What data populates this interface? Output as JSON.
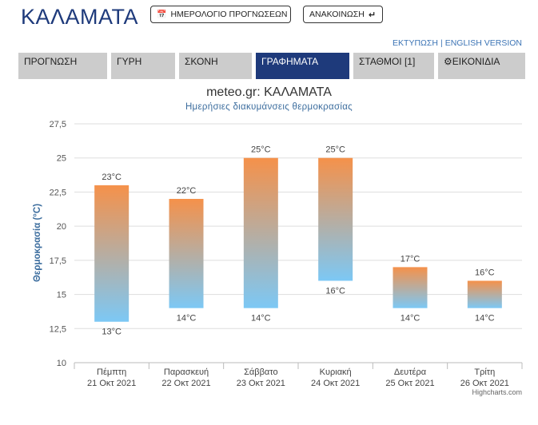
{
  "header": {
    "city": "ΚΑΛΑΜΑΤΑ",
    "calendar_button": "ΗΜΕΡΟΛΟΓΙΟ ΠΡΟΓΝΩΣΕΩΝ",
    "calendar_icon": "calendar-icon",
    "announce_button": "ΑΝΑΚΟΙΝΩΣΗ",
    "announce_icon": "turn-down-arrow-icon"
  },
  "links": {
    "print": "ΕΚΤΥΠΩΣΗ",
    "separator": "|",
    "english": "ENGLISH VERSION"
  },
  "tabs": [
    {
      "label": "ΠΡΟΓΝΩΣΗ",
      "active": false
    },
    {
      "label": "ΓΥΡΗ",
      "active": false
    },
    {
      "label": "ΣΚΟΝΗ",
      "active": false
    },
    {
      "label": "ΓΡΑΦΗΜΑΤΑ",
      "active": true
    },
    {
      "label": "ΣΤΑΘΜΟΙ [1]",
      "active": false
    },
    {
      "label": "ΕΙΚΟΝΙΔΙΑ",
      "active": false,
      "icon": "gear-icon"
    }
  ],
  "colors": {
    "brand": "#1e3a7b",
    "tab_inactive": "#cccccc",
    "bar_top": "#f5914a",
    "bar_bottom": "#7cc8f5",
    "link": "#3c74b5"
  },
  "chart_data": {
    "type": "columnrange",
    "title": "meteo.gr: ΚΑΛΑΜΑΤΑ",
    "subtitle": "Ημερήσιες διακυμάνσεις θερμοκρασίας",
    "ylabel": "Θερμοκρασία (°C)",
    "ylim": [
      10,
      27.5
    ],
    "yticks": [
      "10",
      "12,5",
      "15",
      "17,5",
      "20",
      "22,5",
      "25",
      "27,5"
    ],
    "categories": [
      {
        "day": "Πέμπτη",
        "date": "21 Οκτ 2021"
      },
      {
        "day": "Παρασκευή",
        "date": "22 Οκτ 2021"
      },
      {
        "day": "Σάββατο",
        "date": "23 Οκτ 2021"
      },
      {
        "day": "Κυριακή",
        "date": "24 Οκτ 2021"
      },
      {
        "day": "Δευτέρα",
        "date": "25 Οκτ 2021"
      },
      {
        "day": "Τρίτη",
        "date": "26 Οκτ 2021"
      }
    ],
    "low": [
      13,
      14,
      14,
      16,
      14,
      14
    ],
    "high": [
      23,
      22,
      25,
      25,
      17,
      16
    ],
    "low_labels": [
      "13°C",
      "14°C",
      "14°C",
      "16°C",
      "14°C",
      "14°C"
    ],
    "high_labels": [
      "23°C",
      "22°C",
      "25°C",
      "25°C",
      "17°C",
      "16°C"
    ],
    "grid": true,
    "legend": "none"
  },
  "credits": "Highcharts.com"
}
